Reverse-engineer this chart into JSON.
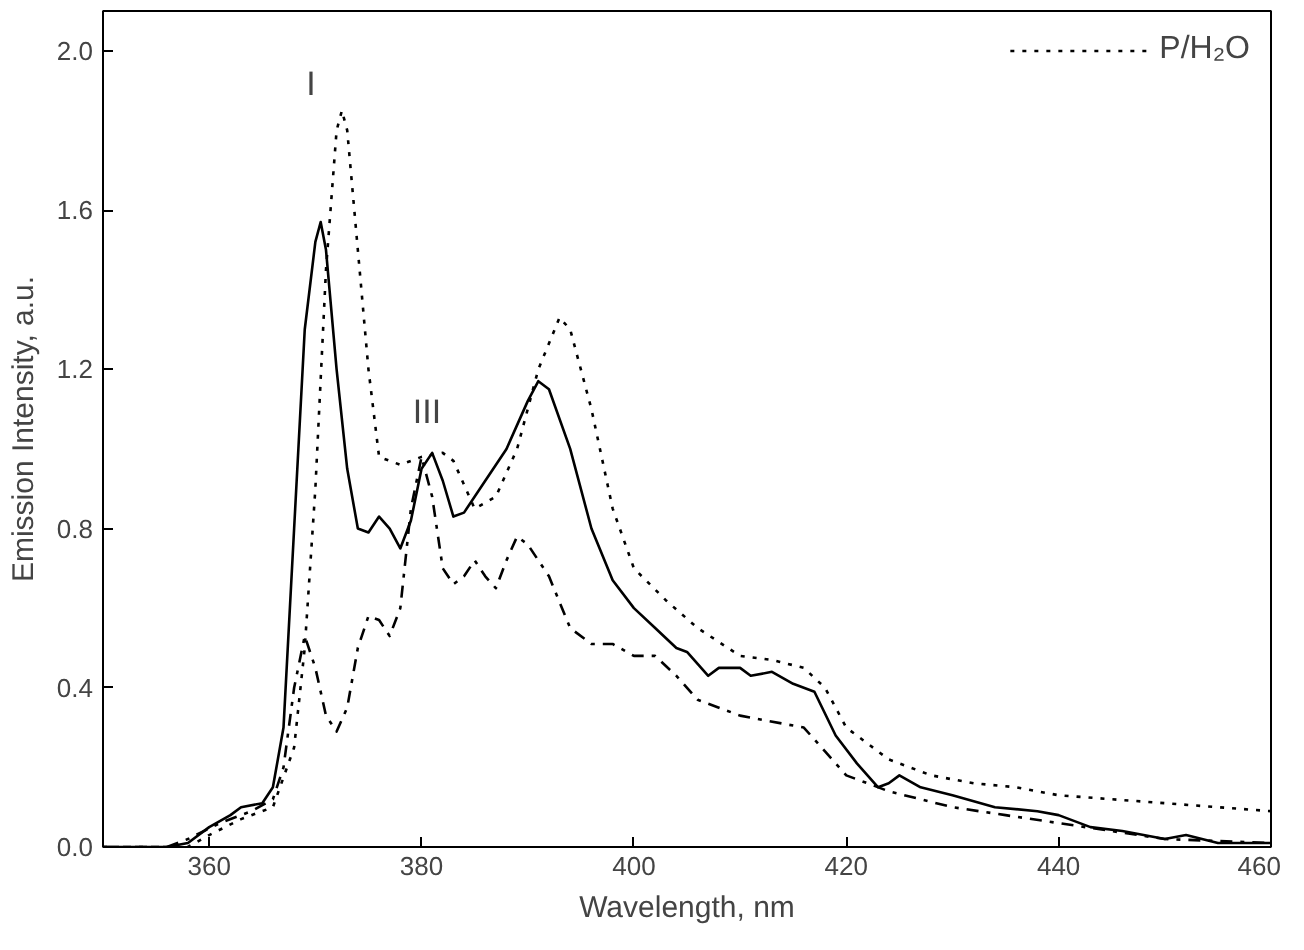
{
  "chart_data": {
    "type": "line",
    "xlabel": "Wavelength, nm",
    "ylabel": "Emission Intensity, a.u.",
    "xlim": [
      350,
      460
    ],
    "xticks": [
      360,
      380,
      400,
      420,
      440,
      460
    ],
    "ylim": [
      0,
      2.1
    ],
    "yticks": [
      {
        "value": 0,
        "label": "0.0"
      },
      {
        "value": 0.4,
        "label": "0.4"
      },
      {
        "value": 0.8,
        "label": "0.8"
      },
      {
        "value": 1.2,
        "label": "1.2"
      },
      {
        "value": 1.6,
        "label": "1.6"
      },
      {
        "value": 2.0,
        "label": "2.0"
      }
    ],
    "grid": false,
    "legend": "top right",
    "marker": "none",
    "annotations": [
      "I",
      "III"
    ],
    "series": [
      {
        "color": "#000000",
        "line_style": "solid",
        "x": [
          350,
          356,
          358,
          360,
          362,
          363,
          365,
          366,
          367,
          368,
          369,
          370,
          370.5,
          371,
          372,
          373,
          374,
          375,
          376,
          377,
          378,
          379,
          380,
          381,
          382,
          383,
          384,
          386,
          388,
          390,
          391,
          392,
          394,
          396,
          398,
          400,
          402,
          404,
          405,
          407,
          408,
          410,
          411,
          413,
          415,
          417,
          419,
          421,
          423,
          424,
          425,
          427,
          430,
          434,
          438,
          440,
          443,
          446,
          450,
          452,
          455,
          460
        ],
        "values": [
          0,
          0,
          0.01,
          0.05,
          0.08,
          0.1,
          0.11,
          0.15,
          0.3,
          0.8,
          1.3,
          1.52,
          1.57,
          1.5,
          1.2,
          0.95,
          0.8,
          0.79,
          0.83,
          0.8,
          0.75,
          0.82,
          0.95,
          0.99,
          0.92,
          0.83,
          0.84,
          0.92,
          1.0,
          1.12,
          1.17,
          1.15,
          1.0,
          0.8,
          0.67,
          0.6,
          0.55,
          0.5,
          0.49,
          0.43,
          0.45,
          0.45,
          0.43,
          0.44,
          0.41,
          0.39,
          0.28,
          0.21,
          0.15,
          0.16,
          0.18,
          0.15,
          0.13,
          0.1,
          0.09,
          0.08,
          0.05,
          0.04,
          0.02,
          0.03,
          0.01,
          0.01
        ]
      },
      {
        "name": "P/H₂O",
        "color": "#000000",
        "line_style": "dotted",
        "x": [
          350,
          358,
          360,
          363,
          366,
          368,
          369,
          370,
          371,
          372,
          372.5,
          373,
          374,
          375,
          376,
          378,
          380,
          382,
          383,
          385,
          387,
          389,
          391,
          393,
          394,
          396,
          398,
          400,
          403,
          406,
          410,
          413,
          416,
          418,
          420,
          424,
          428,
          432,
          436,
          440,
          445,
          450,
          455,
          460
        ],
        "values": [
          0,
          0,
          0.03,
          0.07,
          0.1,
          0.25,
          0.5,
          0.9,
          1.45,
          1.8,
          1.85,
          1.8,
          1.5,
          1.2,
          0.98,
          0.96,
          0.98,
          0.99,
          0.97,
          0.85,
          0.88,
          1.0,
          1.2,
          1.33,
          1.3,
          1.1,
          0.85,
          0.7,
          0.62,
          0.55,
          0.48,
          0.47,
          0.45,
          0.4,
          0.3,
          0.22,
          0.18,
          0.16,
          0.15,
          0.13,
          0.12,
          0.11,
          0.1,
          0.09
        ]
      },
      {
        "color": "#000000",
        "line_style": "dashdot",
        "x": [
          350,
          356,
          358,
          361,
          364,
          366,
          367,
          368,
          369,
          370,
          371,
          372,
          373,
          374,
          375,
          376,
          377,
          378,
          379,
          380,
          381,
          382,
          383,
          384,
          385,
          386,
          387,
          388,
          389,
          390,
          392,
          394,
          396,
          398,
          400,
          402,
          404,
          406,
          410,
          414,
          416,
          418,
          420,
          424,
          430,
          435,
          440,
          445,
          450,
          460
        ],
        "values": [
          0,
          0,
          0.02,
          0.06,
          0.09,
          0.12,
          0.2,
          0.4,
          0.53,
          0.45,
          0.33,
          0.29,
          0.35,
          0.5,
          0.58,
          0.57,
          0.53,
          0.6,
          0.85,
          0.98,
          0.88,
          0.7,
          0.66,
          0.68,
          0.72,
          0.68,
          0.65,
          0.72,
          0.78,
          0.76,
          0.68,
          0.55,
          0.51,
          0.51,
          0.48,
          0.48,
          0.43,
          0.37,
          0.33,
          0.31,
          0.3,
          0.24,
          0.18,
          0.14,
          0.1,
          0.08,
          0.06,
          0.04,
          0.02,
          0.01
        ]
      }
    ]
  }
}
